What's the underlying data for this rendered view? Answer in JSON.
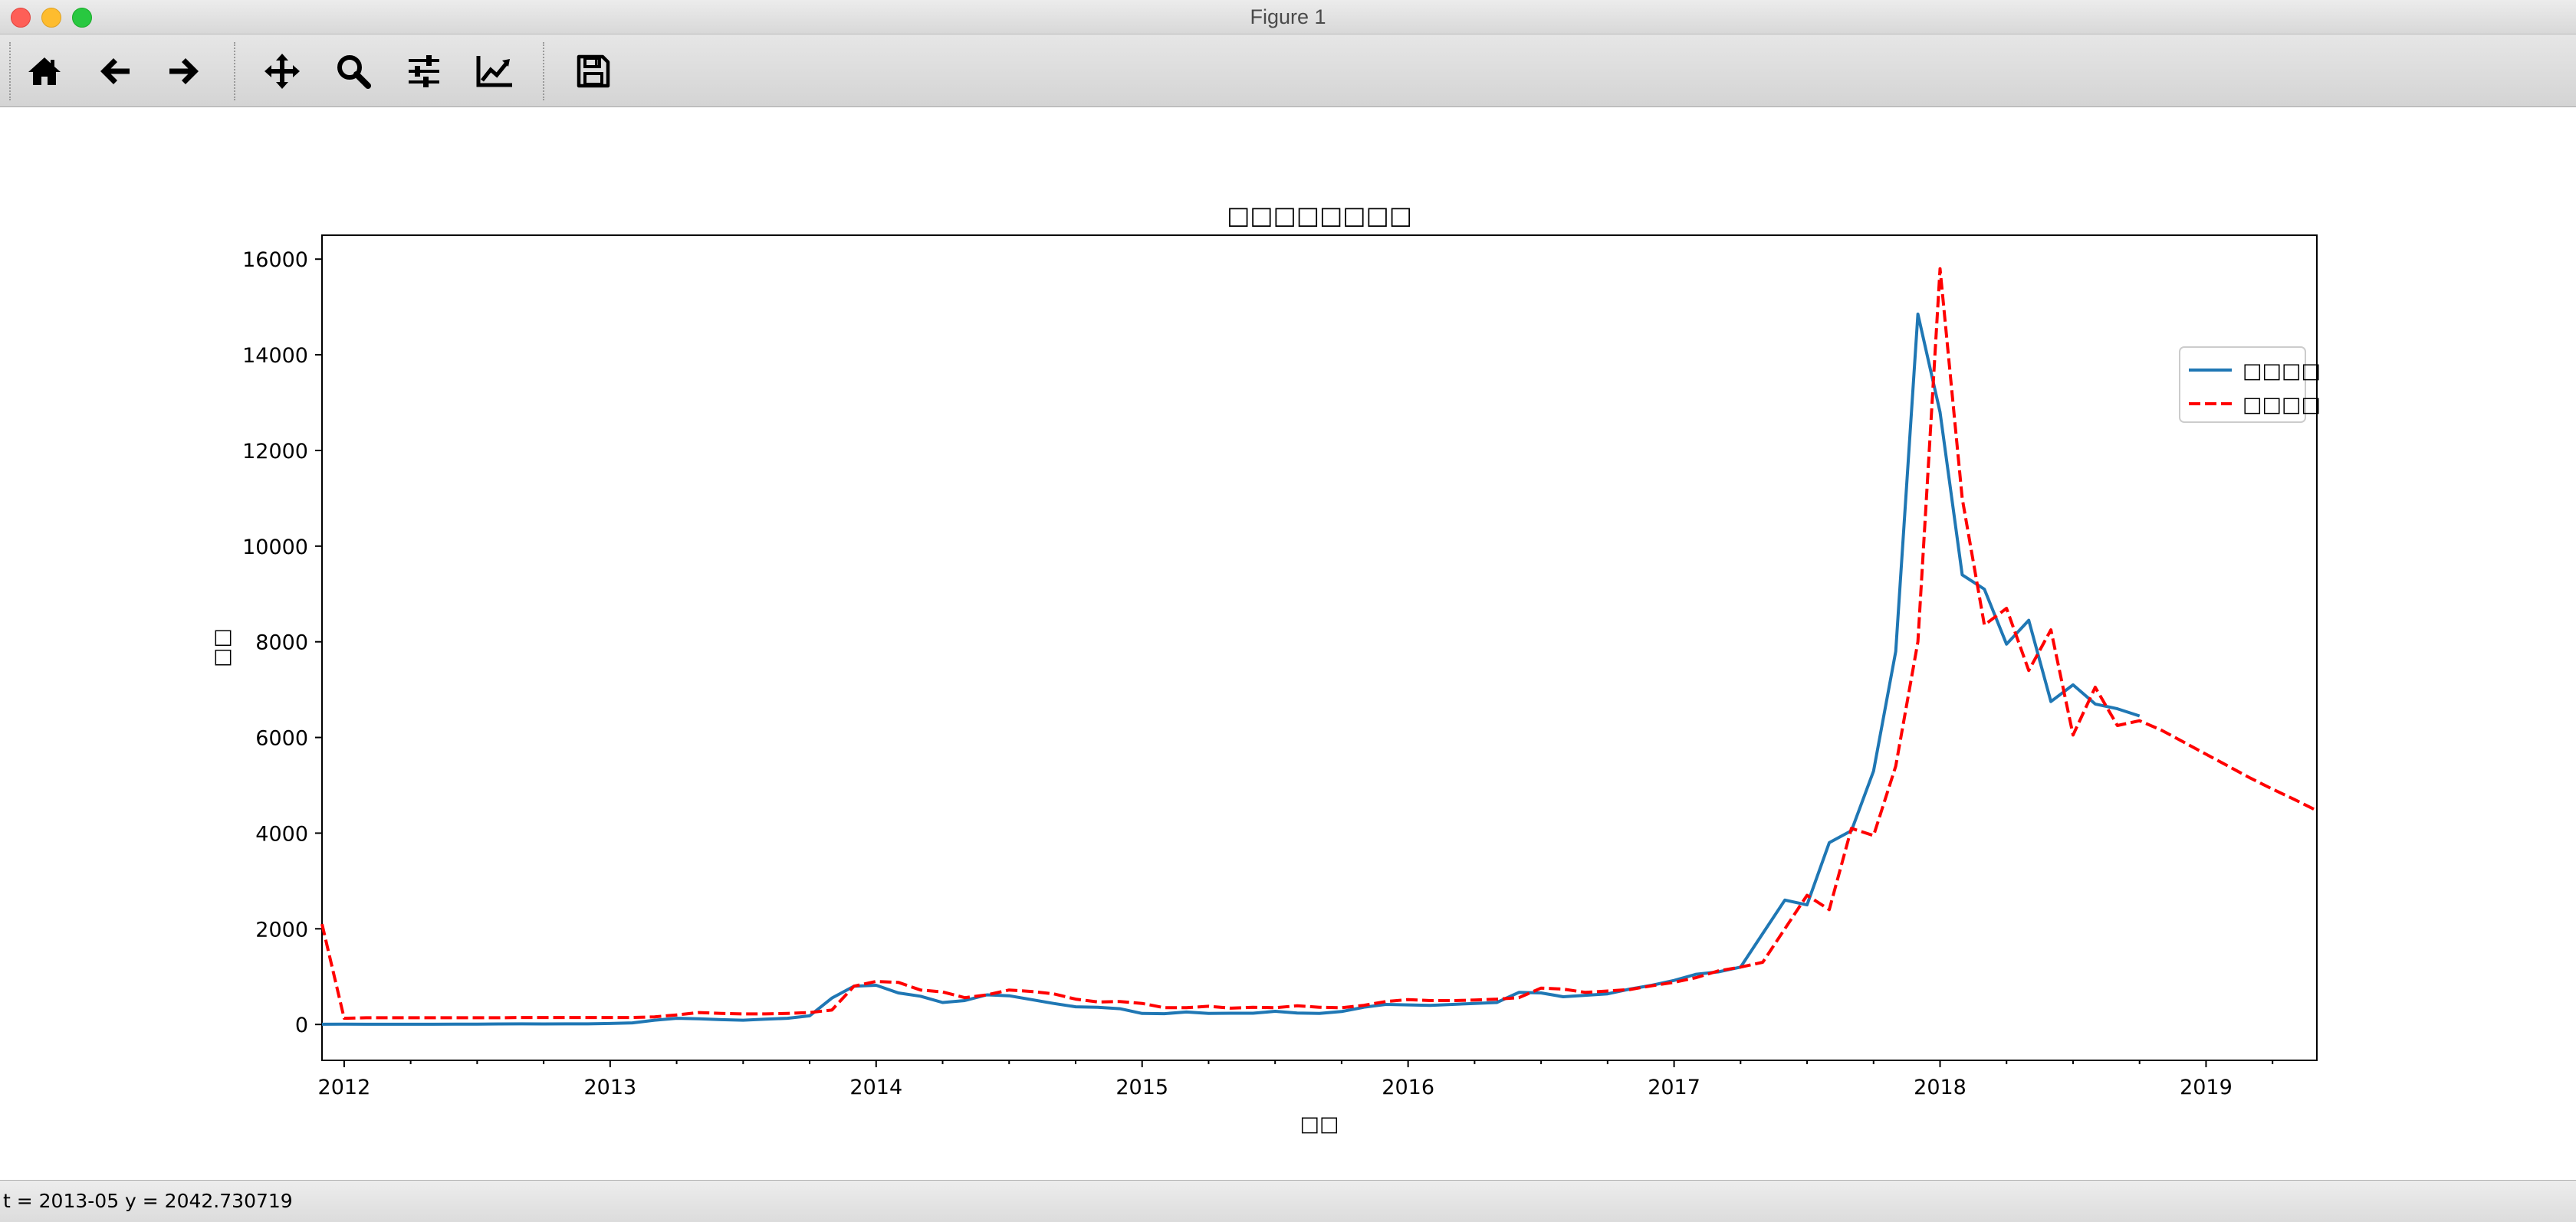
{
  "window": {
    "title": "Figure 1"
  },
  "toolbar": {
    "icons": [
      "home-icon",
      "back-arrow-icon",
      "forward-arrow-icon",
      "pan-icon",
      "zoom-icon",
      "configure-subplots-icon",
      "edit-axes-icon",
      "save-icon"
    ]
  },
  "status": {
    "text": "t = 2013-05  y = 2042.730719"
  },
  "chart_data": {
    "type": "line",
    "title": "□□□□□□□□",
    "xlabel": "□□",
    "ylabel": "□□",
    "xlim": [
      "2011-12",
      "2019-06"
    ],
    "ylim": [
      -750,
      16500
    ],
    "x_ticks": [
      "2012",
      "2013",
      "2014",
      "2015",
      "2016",
      "2017",
      "2018",
      "2019"
    ],
    "y_ticks": [
      0,
      2000,
      4000,
      6000,
      8000,
      10000,
      12000,
      14000,
      16000
    ],
    "grid": false,
    "legend_position": "top-right",
    "series": [
      {
        "name": "□□□□",
        "color": "#1f77b4",
        "style": "solid",
        "points": [
          [
            "2011-12",
            4
          ],
          [
            "2012-01",
            6
          ],
          [
            "2012-02",
            5
          ],
          [
            "2012-03",
            5
          ],
          [
            "2012-04",
            5
          ],
          [
            "2012-05",
            5
          ],
          [
            "2012-06",
            6
          ],
          [
            "2012-07",
            8
          ],
          [
            "2012-08",
            10
          ],
          [
            "2012-09",
            12
          ],
          [
            "2012-10",
            11
          ],
          [
            "2012-11",
            12
          ],
          [
            "2012-12",
            13
          ],
          [
            "2013-01",
            20
          ],
          [
            "2013-02",
            33
          ],
          [
            "2013-03",
            90
          ],
          [
            "2013-04",
            130
          ],
          [
            "2013-05",
            118
          ],
          [
            "2013-06",
            100
          ],
          [
            "2013-07",
            90
          ],
          [
            "2013-08",
            110
          ],
          [
            "2013-09",
            130
          ],
          [
            "2013-10",
            180
          ],
          [
            "2013-11",
            550
          ],
          [
            "2013-12",
            800
          ],
          [
            "2014-01",
            820
          ],
          [
            "2014-02",
            660
          ],
          [
            "2014-03",
            590
          ],
          [
            "2014-04",
            460
          ],
          [
            "2014-05",
            500
          ],
          [
            "2014-06",
            620
          ],
          [
            "2014-07",
            600
          ],
          [
            "2014-08",
            520
          ],
          [
            "2014-09",
            440
          ],
          [
            "2014-10",
            370
          ],
          [
            "2014-11",
            360
          ],
          [
            "2014-12",
            330
          ],
          [
            "2015-01",
            230
          ],
          [
            "2015-02",
            225
          ],
          [
            "2015-03",
            260
          ],
          [
            "2015-04",
            230
          ],
          [
            "2015-05",
            235
          ],
          [
            "2015-06",
            235
          ],
          [
            "2015-07",
            275
          ],
          [
            "2015-08",
            240
          ],
          [
            "2015-09",
            230
          ],
          [
            "2015-10",
            270
          ],
          [
            "2015-11",
            360
          ],
          [
            "2015-12",
            420
          ],
          [
            "2016-01",
            410
          ],
          [
            "2016-02",
            400
          ],
          [
            "2016-03",
            420
          ],
          [
            "2016-04",
            440
          ],
          [
            "2016-05",
            460
          ],
          [
            "2016-06",
            670
          ],
          [
            "2016-07",
            660
          ],
          [
            "2016-08",
            580
          ],
          [
            "2016-09",
            610
          ],
          [
            "2016-10",
            640
          ],
          [
            "2016-11",
            740
          ],
          [
            "2016-12",
            820
          ],
          [
            "2017-01",
            920
          ],
          [
            "2017-02",
            1050
          ],
          [
            "2017-03",
            1100
          ],
          [
            "2017-04",
            1200
          ],
          [
            "2017-05",
            1900
          ],
          [
            "2017-06",
            2600
          ],
          [
            "2017-07",
            2500
          ],
          [
            "2017-08",
            3800
          ],
          [
            "2017-09",
            4050
          ],
          [
            "2017-10",
            5300
          ],
          [
            "2017-11",
            7800
          ],
          [
            "2017-12",
            14850
          ],
          [
            "2018-01",
            12800
          ],
          [
            "2018-02",
            9400
          ],
          [
            "2018-03",
            9100
          ],
          [
            "2018-04",
            7950
          ],
          [
            "2018-05",
            8450
          ],
          [
            "2018-06",
            6750
          ],
          [
            "2018-07",
            7100
          ],
          [
            "2018-08",
            6700
          ],
          [
            "2018-09",
            6600
          ],
          [
            "2018-10",
            6450
          ]
        ]
      },
      {
        "name": "□□□□",
        "color": "#ff0000",
        "style": "dashed",
        "points": [
          [
            "2011-12",
            2100
          ],
          [
            "2012-01",
            130
          ],
          [
            "2012-02",
            140
          ],
          [
            "2012-03",
            140
          ],
          [
            "2012-04",
            140
          ],
          [
            "2012-05",
            140
          ],
          [
            "2012-06",
            140
          ],
          [
            "2012-07",
            140
          ],
          [
            "2012-08",
            140
          ],
          [
            "2012-09",
            145
          ],
          [
            "2012-10",
            145
          ],
          [
            "2012-11",
            145
          ],
          [
            "2012-12",
            145
          ],
          [
            "2013-01",
            145
          ],
          [
            "2013-02",
            145
          ],
          [
            "2013-03",
            160
          ],
          [
            "2013-04",
            200
          ],
          [
            "2013-05",
            250
          ],
          [
            "2013-06",
            230
          ],
          [
            "2013-07",
            220
          ],
          [
            "2013-08",
            220
          ],
          [
            "2013-09",
            230
          ],
          [
            "2013-10",
            250
          ],
          [
            "2013-11",
            300
          ],
          [
            "2013-12",
            800
          ],
          [
            "2014-01",
            900
          ],
          [
            "2014-02",
            880
          ],
          [
            "2014-03",
            720
          ],
          [
            "2014-04",
            680
          ],
          [
            "2014-05",
            560
          ],
          [
            "2014-06",
            620
          ],
          [
            "2014-07",
            720
          ],
          [
            "2014-08",
            690
          ],
          [
            "2014-09",
            640
          ],
          [
            "2014-10",
            530
          ],
          [
            "2014-11",
            470
          ],
          [
            "2014-12",
            480
          ],
          [
            "2015-01",
            440
          ],
          [
            "2015-02",
            350
          ],
          [
            "2015-03",
            350
          ],
          [
            "2015-04",
            380
          ],
          [
            "2015-05",
            340
          ],
          [
            "2015-06",
            360
          ],
          [
            "2015-07",
            350
          ],
          [
            "2015-08",
            390
          ],
          [
            "2015-09",
            360
          ],
          [
            "2015-10",
            350
          ],
          [
            "2015-11",
            400
          ],
          [
            "2015-12",
            480
          ],
          [
            "2016-01",
            520
          ],
          [
            "2016-02",
            500
          ],
          [
            "2016-03",
            500
          ],
          [
            "2016-04",
            510
          ],
          [
            "2016-05",
            530
          ],
          [
            "2016-06",
            560
          ],
          [
            "2016-07",
            760
          ],
          [
            "2016-08",
            740
          ],
          [
            "2016-09",
            670
          ],
          [
            "2016-10",
            700
          ],
          [
            "2016-11",
            730
          ],
          [
            "2016-12",
            810
          ],
          [
            "2017-01",
            880
          ],
          [
            "2017-02",
            980
          ],
          [
            "2017-03",
            1120
          ],
          [
            "2017-04",
            1200
          ],
          [
            "2017-05",
            1300
          ],
          [
            "2017-06",
            2000
          ],
          [
            "2017-07",
            2700
          ],
          [
            "2017-08",
            2400
          ],
          [
            "2017-09",
            4100
          ],
          [
            "2017-10",
            3950
          ],
          [
            "2017-11",
            5400
          ],
          [
            "2017-12",
            8000
          ],
          [
            "2018-01",
            15800
          ],
          [
            "2018-02",
            11000
          ],
          [
            "2018-03",
            8350
          ],
          [
            "2018-04",
            8700
          ],
          [
            "2018-05",
            7400
          ],
          [
            "2018-06",
            8250
          ],
          [
            "2018-07",
            6050
          ],
          [
            "2018-08",
            7050
          ],
          [
            "2018-09",
            6250
          ],
          [
            "2018-10",
            6350
          ],
          [
            "2018-11",
            6150
          ],
          [
            "2018-12",
            5900
          ],
          [
            "2019-01",
            5650
          ],
          [
            "2019-02",
            5400
          ],
          [
            "2019-03",
            5150
          ],
          [
            "2019-04",
            4920
          ],
          [
            "2019-05",
            4700
          ],
          [
            "2019-06",
            4470
          ]
        ]
      }
    ]
  }
}
